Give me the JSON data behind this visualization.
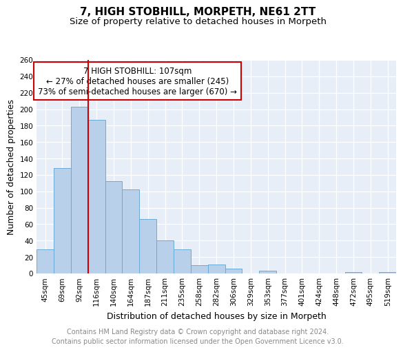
{
  "title": "7, HIGH STOBHILL, MORPETH, NE61 2TT",
  "subtitle": "Size of property relative to detached houses in Morpeth",
  "xlabel": "Distribution of detached houses by size in Morpeth",
  "ylabel": "Number of detached properties",
  "categories": [
    "45sqm",
    "69sqm",
    "92sqm",
    "116sqm",
    "140sqm",
    "164sqm",
    "187sqm",
    "211sqm",
    "235sqm",
    "258sqm",
    "282sqm",
    "306sqm",
    "329sqm",
    "353sqm",
    "377sqm",
    "401sqm",
    "424sqm",
    "448sqm",
    "472sqm",
    "495sqm",
    "519sqm"
  ],
  "values": [
    29,
    128,
    203,
    187,
    112,
    102,
    66,
    40,
    29,
    10,
    11,
    6,
    0,
    3,
    0,
    0,
    0,
    0,
    2,
    0,
    2
  ],
  "bar_color": "#b8d0ea",
  "bar_edge_color": "#6aaad4",
  "vline_color": "#cc0000",
  "annotation_title": "7 HIGH STOBHILL: 107sqm",
  "annotation_line1": "← 27% of detached houses are smaller (245)",
  "annotation_line2": "73% of semi-detached houses are larger (670) →",
  "annotation_box_color": "#ffffff",
  "annotation_box_edge": "#cc0000",
  "ylim": [
    0,
    260
  ],
  "yticks": [
    0,
    20,
    40,
    60,
    80,
    100,
    120,
    140,
    160,
    180,
    200,
    220,
    240,
    260
  ],
  "footer_line1": "Contains HM Land Registry data © Crown copyright and database right 2024.",
  "footer_line2": "Contains public sector information licensed under the Open Government Licence v3.0.",
  "bg_color": "#e8eef8",
  "title_fontsize": 11,
  "subtitle_fontsize": 9.5,
  "axis_label_fontsize": 9,
  "tick_fontsize": 7.5,
  "annotation_fontsize": 8.5,
  "footer_fontsize": 7
}
